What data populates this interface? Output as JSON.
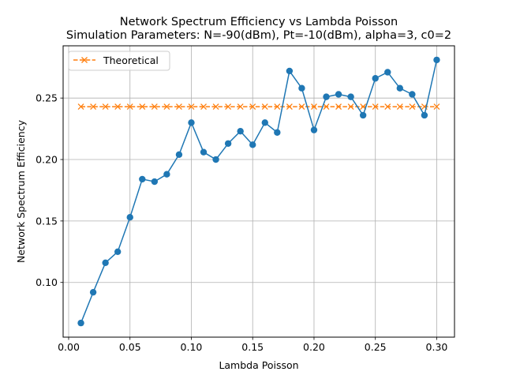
{
  "chart_data": {
    "type": "line",
    "title_line1": "Network Spectrum Efficiency vs Lambda Poisson",
    "title_line2": "Simulation Parameters: N=-90(dBm), Pt=-10(dBm), alpha=3, c0=2",
    "xlabel": "Lambda Poisson",
    "ylabel": "Network Spectrum Efficiency",
    "xlim": [
      -0.0045,
      0.3145
    ],
    "ylim": [
      0.0555,
      0.2925
    ],
    "xticks": [
      0.0,
      0.05,
      0.1,
      0.15,
      0.2,
      0.25,
      0.3
    ],
    "xtick_labels": [
      "0.00",
      "0.05",
      "0.10",
      "0.15",
      "0.20",
      "0.25",
      "0.30"
    ],
    "yticks": [
      0.1,
      0.15,
      0.2,
      0.25
    ],
    "ytick_labels": [
      "0.10",
      "0.15",
      "0.20",
      "0.25"
    ],
    "grid": true,
    "legend_position": "top-left",
    "x": [
      0.01,
      0.02,
      0.03,
      0.04,
      0.05,
      0.06,
      0.07,
      0.08,
      0.09,
      0.1,
      0.11,
      0.12,
      0.13,
      0.14,
      0.15,
      0.16,
      0.17,
      0.18,
      0.19,
      0.2,
      0.21,
      0.22,
      0.23,
      0.24,
      0.25,
      0.26,
      0.27,
      0.28,
      0.29,
      0.3
    ],
    "series": [
      {
        "color": "#1f77b4",
        "marker": "circle",
        "linestyle": "solid",
        "values": [
          0.067,
          0.092,
          0.116,
          0.125,
          0.153,
          0.184,
          0.182,
          0.188,
          0.204,
          0.23,
          0.206,
          0.2,
          0.213,
          0.223,
          0.212,
          0.23,
          0.222,
          0.272,
          0.258,
          0.224,
          0.251,
          0.253,
          0.251,
          0.236,
          0.266,
          0.271,
          0.258,
          0.253,
          0.236,
          0.281
        ]
      },
      {
        "name": "Theoretical",
        "color": "#ff7f0e",
        "marker": "x",
        "linestyle": "dashed",
        "values": [
          0.243,
          0.243,
          0.243,
          0.243,
          0.243,
          0.243,
          0.243,
          0.243,
          0.243,
          0.243,
          0.243,
          0.243,
          0.243,
          0.243,
          0.243,
          0.243,
          0.243,
          0.243,
          0.243,
          0.243,
          0.243,
          0.243,
          0.243,
          0.243,
          0.243,
          0.243,
          0.243,
          0.243,
          0.243,
          0.243
        ]
      }
    ]
  }
}
